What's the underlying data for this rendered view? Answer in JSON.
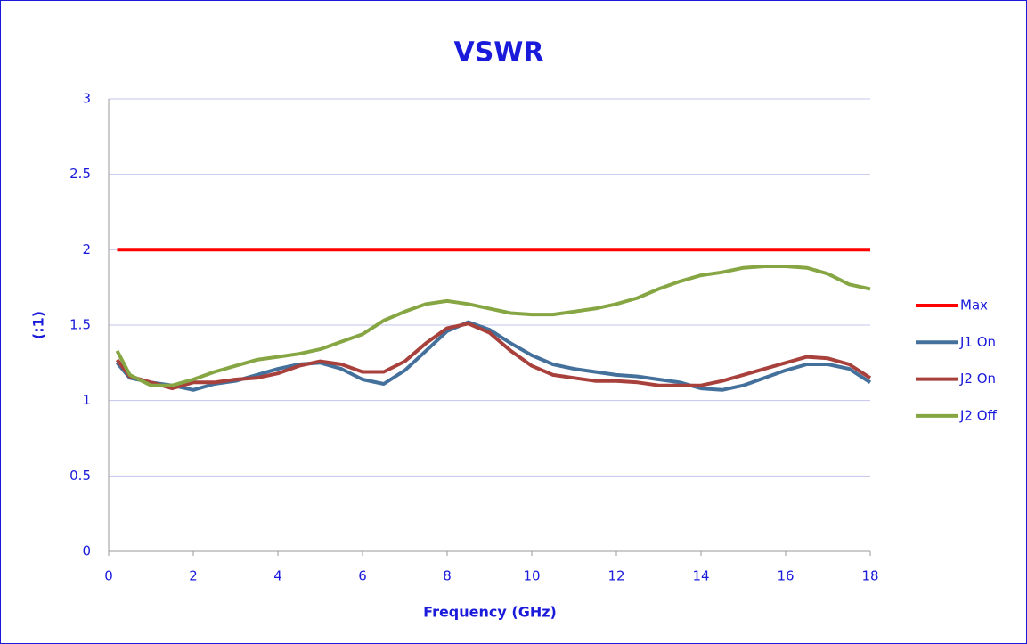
{
  "chart_data": {
    "type": "line",
    "title": "VSWR",
    "x_label": "Frequency (GHz)",
    "y_label": "(:1)",
    "x": [
      0.2,
      0.5,
      1.0,
      1.5,
      2.0,
      2.5,
      3.0,
      3.5,
      4.0,
      4.5,
      5.0,
      5.5,
      6.0,
      6.5,
      7.0,
      7.5,
      8.0,
      8.5,
      9.0,
      9.5,
      10.0,
      10.5,
      11.0,
      11.5,
      12.0,
      12.5,
      13.0,
      13.5,
      14.0,
      14.5,
      15.0,
      15.5,
      16.0,
      16.5,
      17.0,
      17.5,
      18.0
    ],
    "series": [
      {
        "name": "Max",
        "color": "#ff0000",
        "values": [
          2,
          2,
          2,
          2,
          2,
          2,
          2,
          2,
          2,
          2,
          2,
          2,
          2,
          2,
          2,
          2,
          2,
          2,
          2,
          2,
          2,
          2,
          2,
          2,
          2,
          2,
          2,
          2,
          2,
          2,
          2,
          2,
          2,
          2,
          2,
          2,
          2
        ]
      },
      {
        "name": "J1 On",
        "color": "#44709c",
        "values": [
          1.25,
          1.15,
          1.12,
          1.1,
          1.07,
          1.11,
          1.13,
          1.17,
          1.21,
          1.24,
          1.25,
          1.21,
          1.14,
          1.11,
          1.2,
          1.33,
          1.46,
          1.52,
          1.47,
          1.38,
          1.3,
          1.24,
          1.21,
          1.19,
          1.17,
          1.16,
          1.14,
          1.12,
          1.08,
          1.07,
          1.1,
          1.15,
          1.2,
          1.24,
          1.24,
          1.21,
          1.12
        ]
      },
      {
        "name": "J2 On",
        "color": "#a8403c",
        "values": [
          1.27,
          1.16,
          1.12,
          1.08,
          1.12,
          1.12,
          1.14,
          1.15,
          1.18,
          1.23,
          1.26,
          1.24,
          1.19,
          1.19,
          1.26,
          1.38,
          1.48,
          1.51,
          1.45,
          1.33,
          1.23,
          1.17,
          1.15,
          1.13,
          1.13,
          1.12,
          1.1,
          1.1,
          1.1,
          1.13,
          1.17,
          1.21,
          1.25,
          1.29,
          1.28,
          1.24,
          1.15
        ]
      },
      {
        "name": "J2 Off",
        "color": "#86a644",
        "values": [
          1.33,
          1.17,
          1.1,
          1.1,
          1.14,
          1.19,
          1.23,
          1.27,
          1.29,
          1.31,
          1.34,
          1.39,
          1.44,
          1.53,
          1.59,
          1.64,
          1.66,
          1.64,
          1.61,
          1.58,
          1.57,
          1.57,
          1.59,
          1.61,
          1.64,
          1.68,
          1.74,
          1.79,
          1.83,
          1.85,
          1.88,
          1.89,
          1.89,
          1.88,
          1.84,
          1.77,
          1.74
        ]
      }
    ],
    "xlim": [
      0,
      18
    ],
    "xticks": [
      0,
      2,
      4,
      6,
      8,
      10,
      12,
      14,
      16,
      18
    ],
    "ylim": [
      0,
      3
    ],
    "yticks": [
      0,
      0.5,
      1,
      1.5,
      2,
      2.5,
      3
    ],
    "grid": true,
    "legend": "right"
  }
}
